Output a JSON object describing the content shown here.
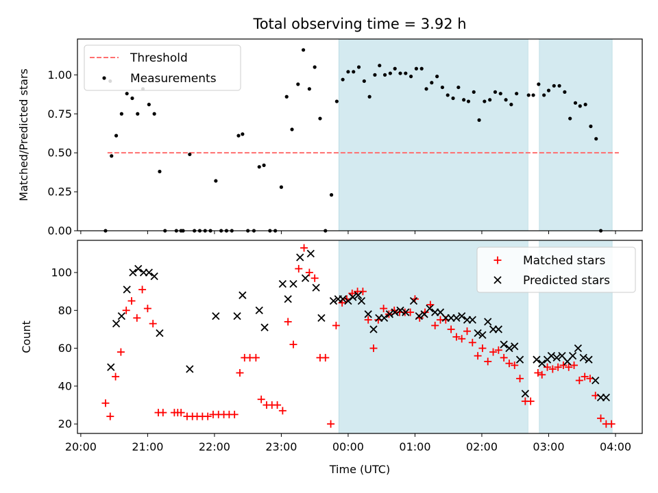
{
  "chart_data": {
    "type": "scatter",
    "title": "Total observing time = 3.92 h",
    "xlabel": "Time (UTC)",
    "x_unit": "hours since 00:00 UTC (negative = previous evening)",
    "x_ticks": [
      {
        "value": -4,
        "label": "20:00"
      },
      {
        "value": -3,
        "label": "21:00"
      },
      {
        "value": -2,
        "label": "22:00"
      },
      {
        "value": -1,
        "label": "23:00"
      },
      {
        "value": 0,
        "label": "00:00"
      },
      {
        "value": 1,
        "label": "01:00"
      },
      {
        "value": 2,
        "label": "02:00"
      },
      {
        "value": 3,
        "label": "03:00"
      },
      {
        "value": 4,
        "label": "04:00"
      }
    ],
    "xlim": [
      -4.05,
      4.4
    ],
    "shaded_intervals": [
      [
        -0.14,
        2.69
      ],
      [
        2.86,
        3.95
      ]
    ],
    "shade_color": "#d4eaf0",
    "top": {
      "ylabel": "Matched/Predicted stars",
      "ylim": [
        0,
        1.23
      ],
      "y_ticks": [
        {
          "value": 0,
          "label": "0.00"
        },
        {
          "value": 0.25,
          "label": "0.25"
        },
        {
          "value": 0.5,
          "label": "0.50"
        },
        {
          "value": 0.75,
          "label": "0.75"
        },
        {
          "value": 1.0,
          "label": "1.00"
        }
      ],
      "threshold": {
        "name": "Threshold",
        "value": 0.5,
        "x_range": [
          -3.6,
          4.05
        ],
        "color": "#ff6e6e"
      },
      "measurements": {
        "name": "Measurements",
        "color": "#000000",
        "points": [
          [
            -3.63,
            0.0
          ],
          [
            -3.56,
            0.96
          ],
          [
            -3.54,
            0.48
          ],
          [
            -3.47,
            0.61
          ],
          [
            -3.39,
            0.75
          ],
          [
            -3.31,
            0.88
          ],
          [
            -3.23,
            0.85
          ],
          [
            -3.15,
            0.75
          ],
          [
            -3.07,
            0.91
          ],
          [
            -2.98,
            0.81
          ],
          [
            -2.9,
            0.75
          ],
          [
            -2.82,
            0.38
          ],
          [
            -2.74,
            0.0
          ],
          [
            -2.57,
            0.0
          ],
          [
            -2.5,
            0.0
          ],
          [
            -2.47,
            0.0
          ],
          [
            -2.37,
            0.49
          ],
          [
            -2.3,
            0.0
          ],
          [
            -2.22,
            0.0
          ],
          [
            -2.14,
            0.0
          ],
          [
            -2.06,
            0.0
          ],
          [
            -1.98,
            0.32
          ],
          [
            -1.9,
            0.0
          ],
          [
            -1.82,
            0.0
          ],
          [
            -1.74,
            0.0
          ],
          [
            -1.64,
            0.61
          ],
          [
            -1.58,
            0.62
          ],
          [
            -1.5,
            0.0
          ],
          [
            -1.41,
            0.0
          ],
          [
            -1.33,
            0.41
          ],
          [
            -1.26,
            0.42
          ],
          [
            -1.17,
            0.0
          ],
          [
            -1.09,
            0.0
          ],
          [
            -1.0,
            0.28
          ],
          [
            -0.92,
            0.86
          ],
          [
            -0.84,
            0.65
          ],
          [
            -0.75,
            0.94
          ],
          [
            -0.67,
            1.16
          ],
          [
            -0.58,
            0.91
          ],
          [
            -0.5,
            1.05
          ],
          [
            -0.42,
            0.72
          ],
          [
            -0.34,
            0.0
          ],
          [
            -0.25,
            0.23
          ],
          [
            -0.17,
            0.83
          ],
          [
            -0.08,
            0.97
          ],
          [
            0.0,
            1.02
          ],
          [
            0.08,
            1.02
          ],
          [
            0.16,
            1.05
          ],
          [
            0.24,
            0.96
          ],
          [
            0.32,
            0.86
          ],
          [
            0.4,
            1.0
          ],
          [
            0.47,
            1.06
          ],
          [
            0.55,
            1.0
          ],
          [
            0.63,
            1.01
          ],
          [
            0.7,
            1.04
          ],
          [
            0.78,
            1.01
          ],
          [
            0.86,
            1.01
          ],
          [
            0.94,
            0.99
          ],
          [
            1.02,
            1.04
          ],
          [
            1.1,
            1.04
          ],
          [
            1.17,
            0.91
          ],
          [
            1.25,
            0.95
          ],
          [
            1.33,
            0.99
          ],
          [
            1.41,
            0.92
          ],
          [
            1.49,
            0.87
          ],
          [
            1.57,
            0.85
          ],
          [
            1.65,
            0.92
          ],
          [
            1.73,
            0.84
          ],
          [
            1.8,
            0.83
          ],
          [
            1.88,
            0.89
          ],
          [
            1.96,
            0.71
          ],
          [
            2.04,
            0.83
          ],
          [
            2.12,
            0.84
          ],
          [
            2.2,
            0.89
          ],
          [
            2.28,
            0.88
          ],
          [
            2.36,
            0.84
          ],
          [
            2.44,
            0.81
          ],
          [
            2.52,
            0.88
          ],
          [
            2.7,
            0.87
          ],
          [
            2.77,
            0.87
          ],
          [
            2.85,
            0.94
          ],
          [
            2.93,
            0.87
          ],
          [
            3.0,
            0.9
          ],
          [
            3.08,
            0.93
          ],
          [
            3.16,
            0.93
          ],
          [
            3.24,
            0.89
          ],
          [
            3.32,
            0.72
          ],
          [
            3.4,
            0.82
          ],
          [
            3.47,
            0.8
          ],
          [
            3.55,
            0.81
          ],
          [
            3.63,
            0.67
          ],
          [
            3.71,
            0.59
          ],
          [
            3.78,
            0.0
          ]
        ]
      }
    },
    "bottom": {
      "ylabel": "Count",
      "ylim": [
        15,
        117
      ],
      "y_ticks": [
        {
          "value": 20,
          "label": "20"
        },
        {
          "value": 40,
          "label": "40"
        },
        {
          "value": 60,
          "label": "60"
        },
        {
          "value": 80,
          "label": "80"
        },
        {
          "value": 100,
          "label": "100"
        }
      ],
      "series": [
        {
          "name": "Matched stars",
          "marker": "plus",
          "color": "#ff0000",
          "points": [
            [
              -3.63,
              31
            ],
            [
              -3.56,
              24
            ],
            [
              -3.48,
              45
            ],
            [
              -3.4,
              58
            ],
            [
              -3.32,
              80
            ],
            [
              -3.24,
              85
            ],
            [
              -3.16,
              76
            ],
            [
              -3.08,
              91
            ],
            [
              -3.0,
              81
            ],
            [
              -2.92,
              73
            ],
            [
              -2.84,
              26
            ],
            [
              -2.77,
              26
            ],
            [
              -2.6,
              26
            ],
            [
              -2.55,
              26
            ],
            [
              -2.5,
              26
            ],
            [
              -2.41,
              24
            ],
            [
              -2.33,
              24
            ],
            [
              -2.26,
              24
            ],
            [
              -2.18,
              24
            ],
            [
              -2.1,
              24
            ],
            [
              -2.02,
              25
            ],
            [
              -1.94,
              25
            ],
            [
              -1.86,
              25
            ],
            [
              -1.78,
              25
            ],
            [
              -1.7,
              25
            ],
            [
              -1.62,
              47
            ],
            [
              -1.55,
              55
            ],
            [
              -1.47,
              55
            ],
            [
              -1.38,
              55
            ],
            [
              -1.3,
              33
            ],
            [
              -1.22,
              30
            ],
            [
              -1.14,
              30
            ],
            [
              -1.06,
              30
            ],
            [
              -0.98,
              27
            ],
            [
              -0.9,
              74
            ],
            [
              -0.82,
              62
            ],
            [
              -0.74,
              102
            ],
            [
              -0.66,
              113
            ],
            [
              -0.58,
              100
            ],
            [
              -0.5,
              97
            ],
            [
              -0.42,
              55
            ],
            [
              -0.34,
              55
            ],
            [
              -0.26,
              20
            ],
            [
              -0.18,
              72
            ],
            [
              -0.09,
              84
            ],
            [
              -0.02,
              86
            ],
            [
              0.06,
              89
            ],
            [
              0.14,
              90
            ],
            [
              0.22,
              90
            ],
            [
              0.3,
              75
            ],
            [
              0.38,
              60
            ],
            [
              0.45,
              75
            ],
            [
              0.53,
              81
            ],
            [
              0.61,
              78
            ],
            [
              0.69,
              80
            ],
            [
              0.77,
              79
            ],
            [
              0.85,
              79
            ],
            [
              0.93,
              79
            ],
            [
              1.0,
              86
            ],
            [
              1.07,
              76
            ],
            [
              1.15,
              79
            ],
            [
              1.23,
              83
            ],
            [
              1.3,
              72
            ],
            [
              1.38,
              75
            ],
            [
              1.46,
              75
            ],
            [
              1.54,
              70
            ],
            [
              1.62,
              66
            ],
            [
              1.7,
              65
            ],
            [
              1.78,
              69
            ],
            [
              1.86,
              63
            ],
            [
              1.94,
              56
            ],
            [
              2.01,
              60
            ],
            [
              2.09,
              53
            ],
            [
              2.17,
              58
            ],
            [
              2.25,
              59
            ],
            [
              2.33,
              55
            ],
            [
              2.41,
              52
            ],
            [
              2.49,
              51
            ],
            [
              2.57,
              44
            ],
            [
              2.65,
              32
            ],
            [
              2.73,
              32
            ],
            [
              2.84,
              47
            ],
            [
              2.9,
              46
            ],
            [
              2.98,
              50
            ],
            [
              3.06,
              49
            ],
            [
              3.14,
              50
            ],
            [
              3.22,
              51
            ],
            [
              3.3,
              50
            ],
            [
              3.38,
              51
            ],
            [
              3.46,
              43
            ],
            [
              3.54,
              45
            ],
            [
              3.62,
              44
            ],
            [
              3.7,
              35
            ],
            [
              3.78,
              23
            ],
            [
              3.86,
              20
            ],
            [
              3.94,
              20
            ]
          ]
        },
        {
          "name": "Predicted stars",
          "marker": "x",
          "color": "#000000",
          "points": [
            [
              -3.55,
              50
            ],
            [
              -3.47,
              73
            ],
            [
              -3.39,
              77
            ],
            [
              -3.31,
              91
            ],
            [
              -3.22,
              100
            ],
            [
              -3.14,
              102
            ],
            [
              -3.06,
              100
            ],
            [
              -2.98,
              100
            ],
            [
              -2.9,
              98
            ],
            [
              -2.82,
              68
            ],
            [
              -2.37,
              49
            ],
            [
              -1.98,
              77
            ],
            [
              -1.66,
              77
            ],
            [
              -1.58,
              88
            ],
            [
              -1.33,
              80
            ],
            [
              -1.25,
              71
            ],
            [
              -0.98,
              94
            ],
            [
              -0.9,
              86
            ],
            [
              -0.82,
              94
            ],
            [
              -0.72,
              108
            ],
            [
              -0.64,
              97
            ],
            [
              -0.56,
              110
            ],
            [
              -0.48,
              92
            ],
            [
              -0.4,
              76
            ],
            [
              -0.22,
              85
            ],
            [
              -0.15,
              86
            ],
            [
              -0.08,
              86
            ],
            [
              0.0,
              85
            ],
            [
              0.07,
              87
            ],
            [
              0.15,
              88
            ],
            [
              0.2,
              85
            ],
            [
              0.3,
              78
            ],
            [
              0.38,
              70
            ],
            [
              0.46,
              76
            ],
            [
              0.54,
              76
            ],
            [
              0.62,
              78
            ],
            [
              0.7,
              79
            ],
            [
              0.78,
              80
            ],
            [
              0.86,
              79
            ],
            [
              0.98,
              85
            ],
            [
              1.06,
              77
            ],
            [
              1.14,
              78
            ],
            [
              1.22,
              81
            ],
            [
              1.3,
              79
            ],
            [
              1.38,
              79
            ],
            [
              1.46,
              76
            ],
            [
              1.54,
              76
            ],
            [
              1.62,
              76
            ],
            [
              1.7,
              77
            ],
            [
              1.78,
              75
            ],
            [
              1.86,
              75
            ],
            [
              1.94,
              68
            ],
            [
              2.01,
              67
            ],
            [
              2.09,
              74
            ],
            [
              2.17,
              70
            ],
            [
              2.25,
              70
            ],
            [
              2.33,
              62
            ],
            [
              2.41,
              60
            ],
            [
              2.49,
              61
            ],
            [
              2.57,
              54
            ],
            [
              2.65,
              36
            ],
            [
              2.82,
              54
            ],
            [
              2.9,
              52
            ],
            [
              2.98,
              54
            ],
            [
              3.04,
              56
            ],
            [
              3.12,
              55
            ],
            [
              3.2,
              56
            ],
            [
              3.28,
              53
            ],
            [
              3.36,
              56
            ],
            [
              3.44,
              60
            ],
            [
              3.52,
              55
            ],
            [
              3.6,
              54
            ],
            [
              3.7,
              43
            ],
            [
              3.78,
              34
            ],
            [
              3.86,
              34
            ]
          ]
        }
      ]
    }
  }
}
